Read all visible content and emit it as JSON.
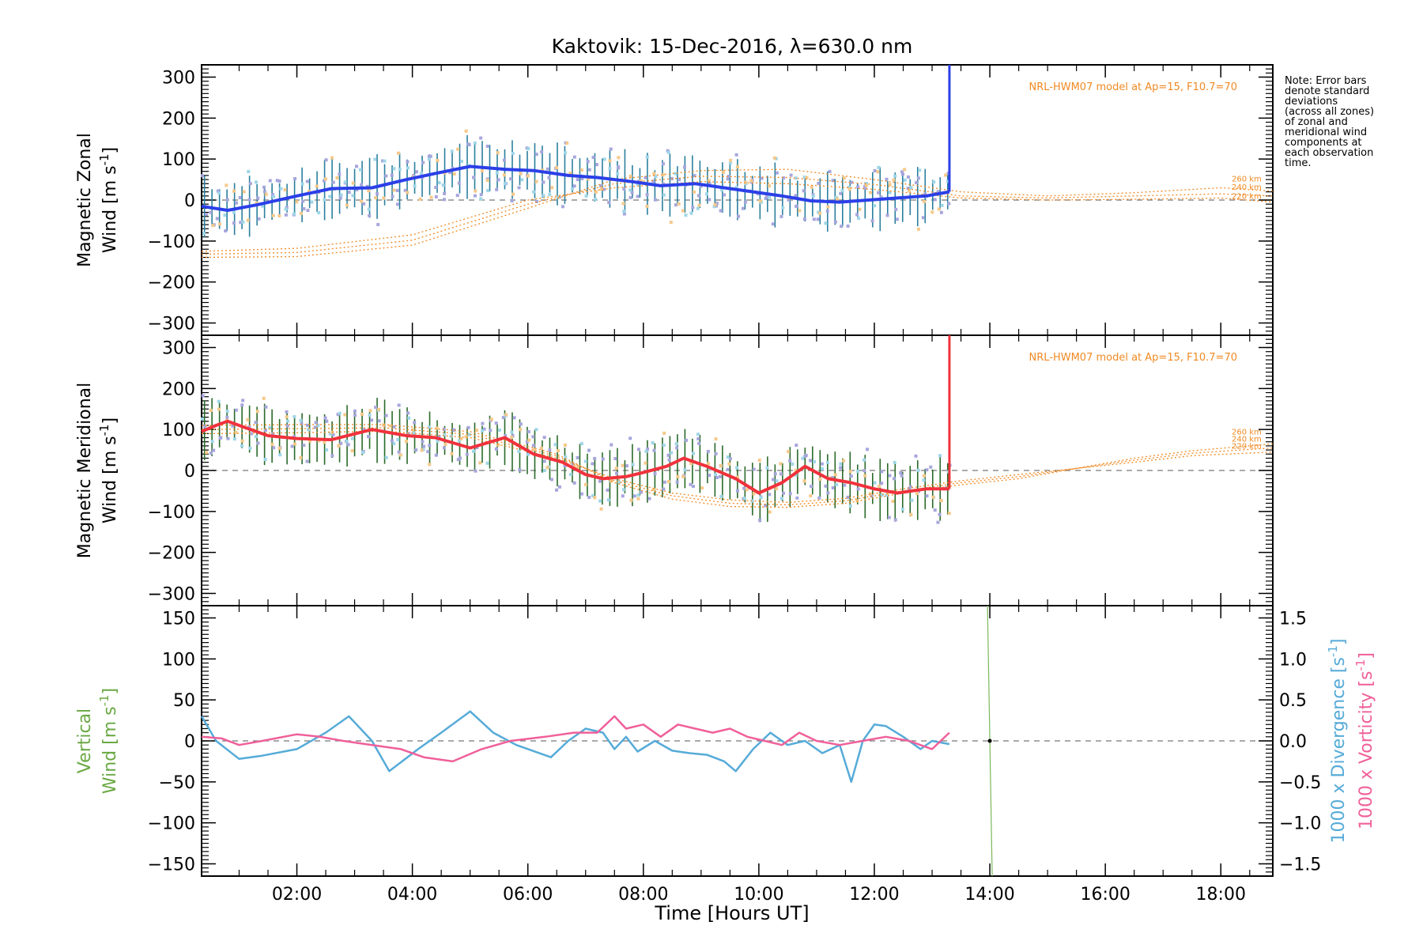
{
  "colors": {
    "axis": "#000000",
    "zonal_line": "#2b3fe8",
    "meridional_line": "#f0323c",
    "model": "#f08a24",
    "zonal_bar": "#2a7f9e",
    "meridional_bar": "#2a6a2a",
    "scatter": "#a7a6dc",
    "vertical_axis_label": "#6aa843",
    "divergence": "#56abd8",
    "vorticity": "#f0609a",
    "vertical_marker": "#7ab85a"
  },
  "chart_data": [
    {
      "type": "line",
      "title": "Kaktovik: 15-Dec-2016, λ=630.0 nm",
      "ylabel_line1": "Magnetic Zonal",
      "ylabel_line2": "Wind [m s",
      "ylabel_exp": "-1",
      "ylabel_close": "]",
      "xlim": [
        0.35,
        18.9
      ],
      "ylim": [
        -330,
        330
      ],
      "yticks": [
        "300",
        "200",
        "100",
        "0",
        "−100",
        "−200",
        "−300"
      ],
      "ytick_values": [
        300,
        200,
        100,
        0,
        -100,
        -200,
        -300
      ],
      "annotation": "NRL-HWM07 model at Ap=15, F10.7=70",
      "note": [
        "Note: Error bars",
        "denote standard",
        "deviations",
        "(across all zones)",
        "of zonal and",
        "meridional wind",
        "components at",
        "each observation",
        "time."
      ],
      "model_labels": [
        "260 km",
        "240 km",
        "220 km"
      ],
      "series": [
        {
          "name": "",
          "x": [
            0.35,
            0.8,
            1.3,
            2.0,
            2.6,
            3.3,
            3.9,
            4.4,
            5.0,
            5.6,
            6.1,
            6.7,
            7.2,
            7.8,
            8.3,
            8.9,
            9.4,
            9.9,
            10.4,
            10.9,
            11.4,
            11.9,
            12.4,
            12.9,
            13.3
          ],
          "values": [
            -15,
            -25,
            -12,
            10,
            28,
            30,
            50,
            65,
            82,
            75,
            72,
            60,
            55,
            45,
            35,
            40,
            30,
            20,
            10,
            -2,
            -5,
            0,
            5,
            10,
            20
          ]
        }
      ],
      "model_series": [
        {
          "x": [
            0.35,
            2.0,
            4.0,
            6.0,
            7.5,
            9.0,
            10.5,
            12.0,
            13.5,
            15.0,
            16.5,
            18.0,
            18.9
          ],
          "values": [
            -140,
            -138,
            -110,
            -20,
            50,
            72,
            75,
            50,
            20,
            10,
            18,
            30,
            22
          ]
        },
        {
          "x": [
            0.35,
            2.0,
            4.0,
            6.0,
            7.5,
            9.0,
            10.5,
            12.0,
            13.5,
            15.0,
            16.5,
            18.0,
            18.9
          ],
          "values": [
            -132,
            -128,
            -98,
            -10,
            40,
            58,
            55,
            38,
            10,
            5,
            10,
            15,
            10
          ]
        },
        {
          "x": [
            0.35,
            2.0,
            4.0,
            6.0,
            7.5,
            9.0,
            10.5,
            12.0,
            13.5,
            15.0,
            16.5,
            18.0,
            18.9
          ],
          "values": [
            -125,
            -118,
            -85,
            0,
            30,
            45,
            40,
            26,
            5,
            0,
            2,
            5,
            -5
          ]
        }
      ],
      "spike_x": 13.3
    },
    {
      "type": "line",
      "ylabel_line1": "Magnetic Meridional",
      "ylabel_line2": "Wind [m s",
      "ylabel_exp": "-1",
      "ylabel_close": "]",
      "xlim": [
        0.35,
        18.9
      ],
      "ylim": [
        -330,
        330
      ],
      "yticks": [
        "300",
        "200",
        "100",
        "0",
        "−100",
        "−200",
        "−300"
      ],
      "ytick_values": [
        300,
        200,
        100,
        0,
        -100,
        -200,
        -300
      ],
      "annotation": "NRL-HWM07 model at Ap=15, F10.7=70",
      "model_labels": [
        "260 km",
        "240 km",
        "220 km"
      ],
      "series": [
        {
          "name": "",
          "x": [
            0.35,
            0.6,
            0.8,
            1.1,
            1.5,
            2.0,
            2.6,
            3.3,
            3.9,
            4.4,
            5.0,
            5.6,
            6.1,
            6.6,
            7.0,
            7.3,
            7.7,
            8.0,
            8.4,
            8.7,
            9.1,
            9.6,
            10.0,
            10.4,
            10.8,
            11.2,
            11.6,
            12.0,
            12.4,
            12.9,
            13.3
          ],
          "values": [
            95,
            110,
            120,
            105,
            85,
            78,
            75,
            100,
            85,
            80,
            55,
            80,
            40,
            20,
            -10,
            -20,
            -15,
            -5,
            10,
            30,
            10,
            -20,
            -55,
            -30,
            10,
            -20,
            -30,
            -45,
            -55,
            -45,
            -45
          ]
        }
      ],
      "model_series": [
        {
          "x": [
            0.35,
            2.0,
            3.5,
            5.0,
            6.5,
            7.5,
            8.5,
            9.5,
            10.5,
            11.5,
            12.5,
            13.5,
            14.5,
            15.5,
            16.5,
            17.5,
            18.9
          ],
          "values": [
            110,
            112,
            112,
            95,
            40,
            -30,
            -70,
            -88,
            -90,
            -80,
            -55,
            -35,
            -20,
            5,
            30,
            48,
            65
          ]
        },
        {
          "x": [
            0.35,
            2.0,
            3.5,
            5.0,
            6.5,
            7.5,
            8.5,
            9.5,
            10.5,
            11.5,
            12.5,
            13.5,
            14.5,
            15.5,
            16.5,
            17.5,
            18.9
          ],
          "values": [
            100,
            102,
            104,
            88,
            35,
            -25,
            -62,
            -80,
            -84,
            -74,
            -50,
            -30,
            -15,
            5,
            25,
            42,
            55
          ]
        },
        {
          "x": [
            0.35,
            2.0,
            3.5,
            5.0,
            6.5,
            7.5,
            8.5,
            9.5,
            10.5,
            11.5,
            12.5,
            13.5,
            14.5,
            15.5,
            16.5,
            17.5,
            18.9
          ],
          "values": [
            90,
            92,
            96,
            80,
            30,
            -20,
            -55,
            -72,
            -78,
            -68,
            -45,
            -25,
            -10,
            5,
            20,
            36,
            45
          ]
        }
      ],
      "spike_x": 13.3
    },
    {
      "type": "line",
      "ylabel_line1": "Vertical",
      "ylabel_line2": "Wind [m s",
      "ylabel_exp": "-1",
      "ylabel_close": "]",
      "xlim": [
        0.35,
        18.9
      ],
      "ylim": [
        -165,
        165
      ],
      "yticks": [
        "150",
        "100",
        "50",
        "0",
        "−50",
        "−100",
        "−150"
      ],
      "ytick_values": [
        150,
        100,
        50,
        0,
        -50,
        -100,
        -150
      ],
      "y2ticks": [
        "1.5",
        "1.0",
        "0.5",
        "0.0",
        "−0.5",
        "−1.0",
        "−1.5"
      ],
      "y2tick_values": [
        1.5,
        1.0,
        0.5,
        0.0,
        -0.5,
        -1.0,
        -1.5
      ],
      "y2lim": [
        -1.65,
        1.65
      ],
      "y2label_div": "1000 x Divergence [s",
      "y2label_vort": "1000 x Vorticity [s",
      "y2label_exp": "-1",
      "y2label_close": "]",
      "xticks": [
        "02:00",
        "04:00",
        "06:00",
        "08:00",
        "10:00",
        "12:00",
        "14:00",
        "16:00",
        "18:00"
      ],
      "xtick_values": [
        2,
        4,
        6,
        8,
        10,
        12,
        14,
        16,
        18
      ],
      "xlabel": "Time [Hours UT]",
      "series": [
        {
          "name": "",
          "x": [
            0.35,
            0.6,
            1.0,
            1.4,
            2.0,
            2.5,
            2.9,
            3.3,
            3.6,
            4.1,
            4.5,
            5.0,
            5.4,
            5.8,
            6.4,
            6.7,
            7.0,
            7.3,
            7.5,
            7.7,
            7.9,
            8.2,
            8.5,
            8.8,
            9.1,
            9.4,
            9.6,
            9.9,
            10.2,
            10.5,
            10.8,
            11.1,
            11.4,
            11.6,
            11.8,
            12.0,
            12.2,
            12.5,
            12.8,
            13.0,
            13.3
          ],
          "values": [
            0.3,
            0.0,
            -0.22,
            -0.18,
            -0.1,
            0.1,
            0.3,
            0.0,
            -0.37,
            -0.1,
            0.1,
            0.36,
            0.1,
            -0.05,
            -0.2,
            0.0,
            0.15,
            0.1,
            -0.1,
            0.05,
            -0.13,
            0.0,
            -0.12,
            -0.15,
            -0.17,
            -0.25,
            -0.37,
            -0.1,
            0.1,
            -0.05,
            0.0,
            -0.15,
            -0.05,
            -0.5,
            0.0,
            0.2,
            0.18,
            0.05,
            -0.1,
            0.0,
            -0.04
          ]
        },
        {
          "name": "",
          "x": [
            0.35,
            0.7,
            1.0,
            1.4,
            2.0,
            2.4,
            2.8,
            3.3,
            3.8,
            4.2,
            4.7,
            5.2,
            5.7,
            6.3,
            6.8,
            7.2,
            7.5,
            7.7,
            8.0,
            8.3,
            8.6,
            8.9,
            9.2,
            9.5,
            9.8,
            10.1,
            10.4,
            10.7,
            11.0,
            11.4,
            11.8,
            12.2,
            12.6,
            13.0,
            13.3
          ],
          "values": [
            0.05,
            0.03,
            -0.05,
            0.0,
            0.08,
            0.05,
            0.0,
            -0.05,
            -0.1,
            -0.2,
            -0.25,
            -0.1,
            0.0,
            0.05,
            0.1,
            0.1,
            0.3,
            0.15,
            0.2,
            0.05,
            0.2,
            0.15,
            0.1,
            0.15,
            0.05,
            0.0,
            -0.05,
            0.1,
            0.0,
            -0.05,
            0.0,
            0.05,
            0.0,
            -0.1,
            0.1
          ]
        }
      ],
      "marker_x": 14.0
    }
  ]
}
